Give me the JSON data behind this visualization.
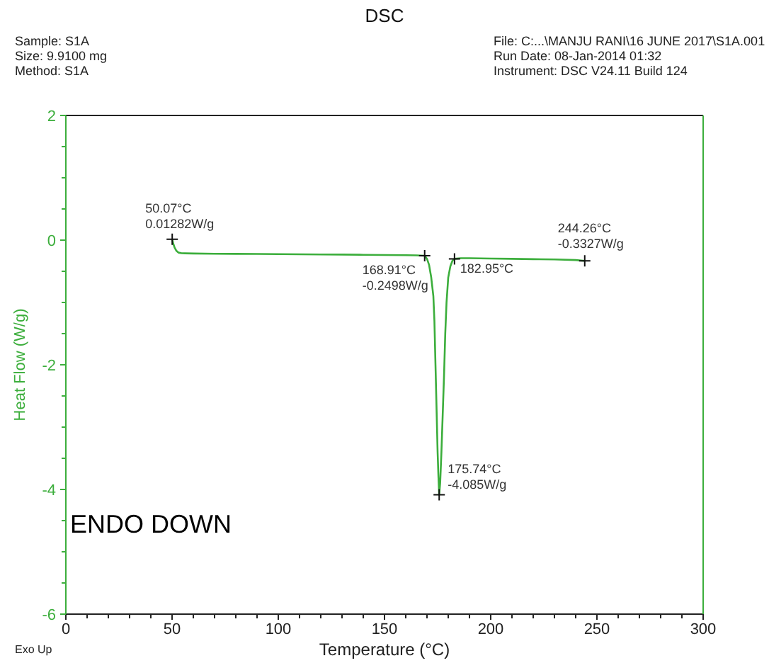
{
  "chart_data": {
    "type": "line",
    "title": "DSC",
    "xlabel": "Temperature (°C)",
    "ylabel": "Heat Flow (W/g)",
    "x": [
      50.07,
      50.6,
      51.2,
      52.0,
      53.0,
      54.5,
      56.0,
      60,
      70,
      80,
      90,
      100,
      110,
      120,
      130,
      140,
      150,
      160,
      165,
      168.91,
      170.0,
      171.0,
      172.0,
      173.0,
      173.5,
      174.0,
      174.5,
      175.0,
      175.4,
      175.74,
      176.2,
      176.8,
      177.4,
      178.0,
      178.6,
      179.2,
      180.0,
      181.0,
      182.0,
      182.95,
      186,
      190,
      200,
      210,
      220,
      230,
      240,
      244.26
    ],
    "series": [
      {
        "color": "#3cae3c",
        "values": [
          0.01282,
          -0.06,
          -0.12,
          -0.17,
          -0.2,
          -0.21,
          -0.212,
          -0.215,
          -0.218,
          -0.22,
          -0.222,
          -0.225,
          -0.227,
          -0.23,
          -0.232,
          -0.235,
          -0.238,
          -0.242,
          -0.245,
          -0.2498,
          -0.3,
          -0.4,
          -0.6,
          -0.9,
          -1.3,
          -2.0,
          -2.7,
          -3.4,
          -3.8,
          -4.085,
          -3.9,
          -3.4,
          -2.8,
          -2.2,
          -1.5,
          -1.0,
          -0.6,
          -0.42,
          -0.33,
          -0.3,
          -0.29,
          -0.29,
          -0.295,
          -0.3,
          -0.305,
          -0.31,
          -0.32,
          -0.3327
        ]
      }
    ],
    "xlim": [
      0,
      300
    ],
    "xticks": [
      0,
      {
        "value": 10,
        "label": null
      },
      {
        "value": 20,
        "label": null
      },
      {
        "value": 30,
        "label": null
      },
      {
        "value": 40,
        "label": null
      },
      50,
      {
        "value": 60,
        "label": null
      },
      {
        "value": 70,
        "label": null
      },
      {
        "value": 80,
        "label": null
      },
      {
        "value": 90,
        "label": null
      },
      100,
      {
        "value": 110,
        "label": null
      },
      {
        "value": 120,
        "label": null
      },
      {
        "value": 130,
        "label": null
      },
      {
        "value": 140,
        "label": null
      },
      150,
      {
        "value": 160,
        "label": null
      },
      {
        "value": 170,
        "label": null
      },
      {
        "value": 180,
        "label": null
      },
      {
        "value": 190,
        "label": null
      },
      200,
      {
        "value": 210,
        "label": null
      },
      {
        "value": 220,
        "label": null
      },
      {
        "value": 230,
        "label": null
      },
      {
        "value": 240,
        "label": null
      },
      250,
      {
        "value": 260,
        "label": null
      },
      {
        "value": 270,
        "label": null
      },
      {
        "value": 280,
        "label": null
      },
      {
        "value": 290,
        "label": null
      },
      300
    ],
    "ylim": [
      -6,
      2
    ],
    "yticks": [
      -6,
      {
        "value": -5.5,
        "label": null
      },
      {
        "value": -5,
        "label": null
      },
      {
        "value": -4.5,
        "label": null
      },
      -4,
      {
        "value": -3.5,
        "label": null
      },
      {
        "value": -3,
        "label": null
      },
      {
        "value": -2.5,
        "label": null
      },
      -2,
      {
        "value": -1.5,
        "label": null
      },
      {
        "value": -1,
        "label": null
      },
      {
        "value": -0.5,
        "label": null
      },
      0,
      {
        "value": 0.5,
        "label": null
      },
      {
        "value": 1,
        "label": null
      },
      {
        "value": 1.5,
        "label": null
      },
      2
    ],
    "grid": false,
    "annotations": [
      "Sample: S1A\nSize: 9.9100 mg\nMethod: S1A",
      "File: C:...\\MANJU RANI\\16 JUNE 2017\\S1A.001\nRun Date: 08-Jan-2014 01:32\nInstrument: DSC V24.11 Build 124",
      "ENDO DOWN",
      "Exo Up",
      {
        "text": "50.07°C\n0.01282W/g",
        "x": 50.07,
        "y": 0.01282
      },
      {
        "text": "168.91°C\n-0.2498W/g",
        "x": 168.91,
        "y": -0.2498
      },
      {
        "text": "182.95°C",
        "x": 182.95,
        "y": -0.3
      },
      {
        "text": "175.74°C\n-4.085W/g",
        "x": 175.74,
        "y": -4.085
      },
      {
        "text": "244.26°C\n-0.3327W/g",
        "x": 244.26,
        "y": -0.3327
      }
    ]
  }
}
